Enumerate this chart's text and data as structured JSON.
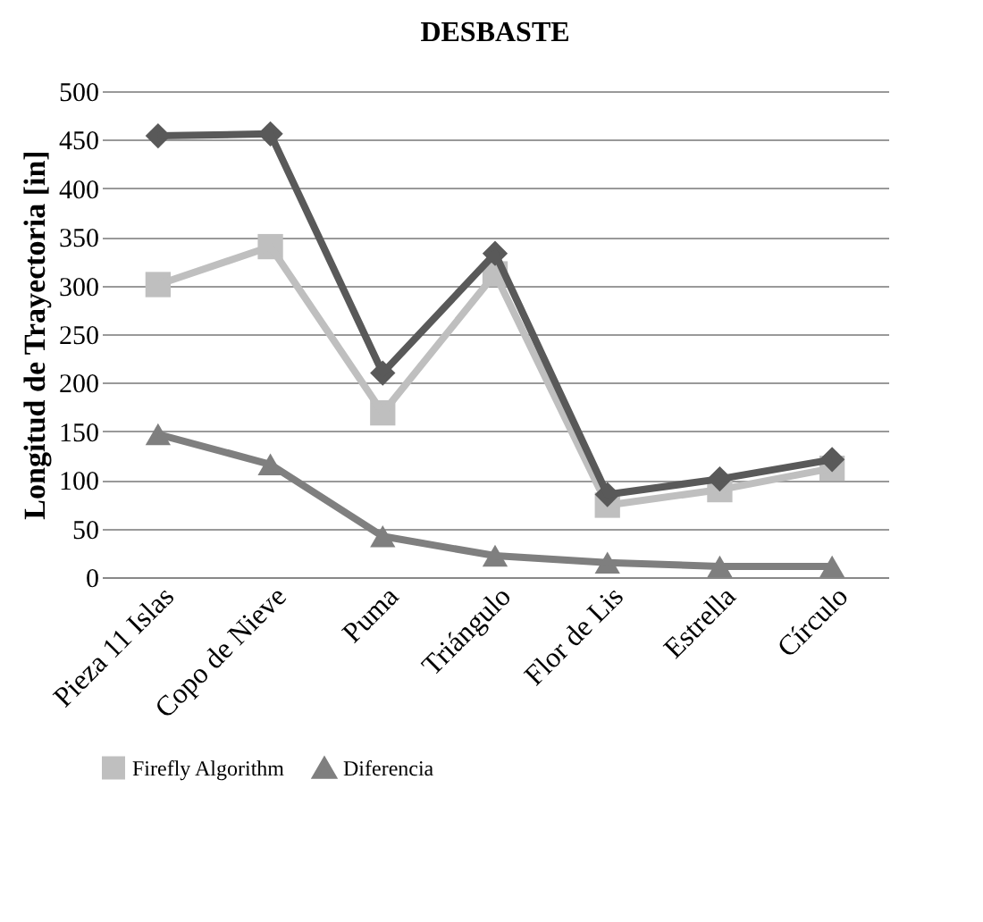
{
  "chart_data": {
    "type": "line",
    "title": "DESBASTE",
    "ylabel": "Longitud de Trayectoria [in]",
    "categories": [
      "Pieza  11 Islas",
      "Copo de Nieve",
      "Puma",
      "Triángulo",
      "Flor de Lis",
      "Estrella",
      "Círculo"
    ],
    "series": [
      {
        "color": "#595959",
        "marker": "diamond",
        "values": [
          454,
          456,
          210,
          333,
          85,
          101,
          121
        ]
      },
      {
        "name": "Firefly Algorithm",
        "color": "#bfbfbf",
        "marker": "square",
        "values": [
          301,
          340,
          169,
          312,
          74,
          90,
          112
        ]
      },
      {
        "name": "Diferencia",
        "color": "#7f7f7f",
        "marker": "triangle",
        "values": [
          147,
          116,
          42,
          22,
          15,
          11,
          11
        ]
      }
    ],
    "ylim": [
      0,
      500
    ],
    "yticks": [
      0,
      50,
      100,
      150,
      200,
      250,
      300,
      350,
      400,
      450,
      500
    ],
    "grid": "y",
    "legend": "bottom"
  }
}
